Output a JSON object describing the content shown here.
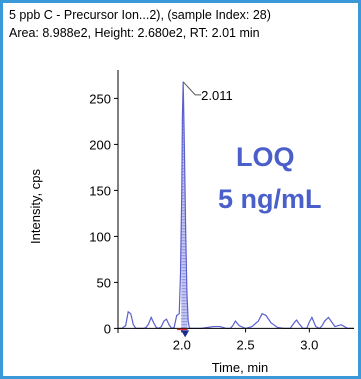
{
  "header": {
    "line1": "5 ppb C - Precursor Ion...2), (sample Index: 28)",
    "line2": "Area: 8.988e2, Height: 2.680e2, RT: 2.01 min"
  },
  "annotation": {
    "line1": "LOQ",
    "line2": "5 ng/mL",
    "color": "#4a5fc9"
  },
  "chart_data": {
    "type": "line",
    "title": "",
    "xlabel": "Time, min",
    "ylabel": "Intensity, cps",
    "xlim": [
      1.5,
      3.35
    ],
    "ylim": [
      -5,
      270
    ],
    "xticks": [
      2.0,
      2.5,
      3.0
    ],
    "xtick_labels": [
      "2.0",
      "2.5",
      "3.0"
    ],
    "yticks": [
      0,
      50,
      100,
      150,
      200,
      250
    ],
    "ytick_labels": [
      "0",
      "50",
      "100",
      "150",
      "200",
      "250"
    ],
    "grid": false,
    "series": [
      {
        "line_color": "#5a5fd0",
        "fill_color": "#c6c9f0",
        "x": [
          1.5,
          1.53,
          1.56,
          1.58,
          1.6,
          1.62,
          1.64,
          1.67,
          1.7,
          1.72,
          1.74,
          1.76,
          1.78,
          1.8,
          1.82,
          1.84,
          1.86,
          1.88,
          1.9,
          1.92,
          1.94,
          1.96,
          1.98,
          1.99,
          2.0,
          2.005,
          2.011,
          2.02,
          2.03,
          2.04,
          2.05,
          2.06,
          2.08,
          2.1,
          2.15,
          2.2,
          2.25,
          2.3,
          2.35,
          2.38,
          2.4,
          2.42,
          2.45,
          2.5,
          2.55,
          2.6,
          2.63,
          2.66,
          2.7,
          2.75,
          2.8,
          2.85,
          2.88,
          2.9,
          2.92,
          2.95,
          2.98,
          3.0,
          3.02,
          3.05,
          3.08,
          3.1,
          3.12,
          3.15,
          3.2,
          3.25,
          3.3,
          3.35
        ],
        "values": [
          0,
          0,
          3,
          18,
          16,
          4,
          0,
          0,
          0,
          1,
          5,
          12,
          6,
          1,
          0,
          2,
          8,
          10,
          4,
          0,
          1,
          14,
          16,
          60,
          150,
          230,
          268,
          200,
          110,
          40,
          8,
          0,
          0,
          0,
          0,
          1,
          2,
          2,
          0,
          0,
          3,
          8,
          3,
          0,
          2,
          8,
          16,
          14,
          6,
          1,
          0,
          0,
          6,
          9,
          5,
          0,
          0,
          7,
          12,
          2,
          0,
          3,
          8,
          12,
          2,
          4,
          0,
          0
        ]
      }
    ],
    "peak_label": {
      "x": 2.011,
      "y": 268,
      "text": "2.011"
    },
    "integration": {
      "start": 1.995,
      "end": 2.045,
      "color": "#1a2a90"
    }
  }
}
